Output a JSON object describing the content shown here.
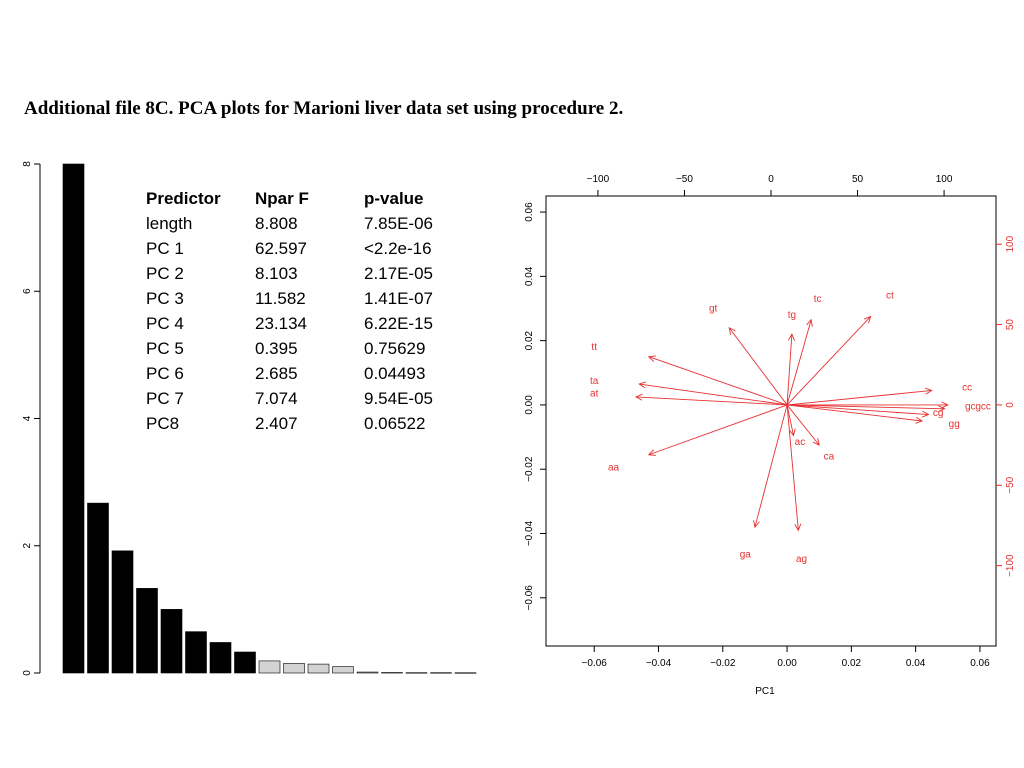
{
  "page": {
    "title": "Additional file 8C. PCA plots for Marioni liver data set using procedure 2."
  },
  "table": {
    "headers": [
      "Predictor",
      "Npar F",
      "p-value"
    ],
    "rows": [
      [
        "length",
        "8.808",
        "7.85E-06"
      ],
      [
        "PC 1",
        "62.597",
        "<2.2e-16"
      ],
      [
        "PC 2",
        "8.103",
        "2.17E-05"
      ],
      [
        "PC 3",
        "11.582",
        "1.41E-07"
      ],
      [
        "PC 4",
        "23.134",
        "6.22E-15"
      ],
      [
        "PC 5",
        "0.395",
        "0.75629"
      ],
      [
        "PC 6",
        "2.685",
        "0.04493"
      ],
      [
        "PC 7",
        "7.074",
        "9.54E-05"
      ],
      [
        "PC8",
        "2.407",
        "0.06522"
      ]
    ]
  },
  "chart_data": [
    {
      "type": "bar",
      "title": "",
      "xlabel": "",
      "ylabel": "",
      "ylim": [
        0,
        8
      ],
      "yticks": [
        "0",
        "2",
        "4",
        "6",
        "8"
      ],
      "values": [
        8.0,
        2.67,
        1.92,
        1.33,
        1.0,
        0.65,
        0.48,
        0.33,
        0.19,
        0.15,
        0.14,
        0.1,
        0.015,
        0.007,
        0.005,
        0.005,
        0.004
      ],
      "colors": {
        "significant": "#000000",
        "non_significant": "#d3d3d3",
        "edge": "#000000"
      },
      "significant_count": 8,
      "light_count": 4
    },
    {
      "type": "scatter",
      "subtype": "biplot",
      "title": "",
      "xlabel": "PC1",
      "ylabel": "",
      "xlim": [
        -0.075,
        0.065
      ],
      "ylim": [
        -0.075,
        0.065
      ],
      "top_xlim": [
        -130,
        130
      ],
      "right_ylim": [
        -150,
        130
      ],
      "bottom_ticks": [
        "-0.06",
        "-0.04",
        "-0.02",
        "0.00",
        "0.02",
        "0.04",
        "0.06"
      ],
      "left_ticks": [
        "-0.06",
        "-0.04",
        "-0.02",
        "0.00",
        "0.02",
        "0.04",
        "0.06"
      ],
      "top_ticks": [
        "-100",
        "-50",
        "0",
        "50",
        "100"
      ],
      "right_ticks": [
        "-100",
        "-50",
        "0",
        "50",
        "100"
      ],
      "arrow_color": "#e83030",
      "vectors": [
        {
          "label": "tt",
          "x": -0.043,
          "y": 0.015,
          "lx": -0.06,
          "ly": 0.018
        },
        {
          "label": "ta",
          "x": -0.046,
          "y": 0.0065,
          "lx": -0.06,
          "ly": 0.0075
        },
        {
          "label": "at",
          "x": -0.047,
          "y": 0.0025,
          "lx": -0.06,
          "ly": 0.0035
        },
        {
          "label": "aa",
          "x": -0.043,
          "y": -0.0155,
          "lx": -0.054,
          "ly": -0.0195
        },
        {
          "label": "gt",
          "x": -0.018,
          "y": 0.024,
          "lx": -0.023,
          "ly": 0.03
        },
        {
          "label": "tg",
          "x": 0.0015,
          "y": 0.022,
          "lx": 0.0015,
          "ly": 0.028
        },
        {
          "label": "tc",
          "x": 0.0075,
          "y": 0.0265,
          "lx": 0.0095,
          "ly": 0.033
        },
        {
          "label": "ct",
          "x": 0.026,
          "y": 0.0275,
          "lx": 0.032,
          "ly": 0.034
        },
        {
          "label": "cc",
          "x": 0.045,
          "y": 0.0045,
          "lx": 0.056,
          "ly": 0.0055
        },
        {
          "label": "gc",
          "x": 0.049,
          "y": -0.0012,
          "lx": 0.057,
          "ly": -0.0005
        },
        {
          "label": "cg",
          "x": 0.044,
          "y": -0.003,
          "lx": 0.047,
          "ly": -0.0025
        },
        {
          "label": "gg",
          "x": 0.042,
          "y": -0.005,
          "lx": 0.052,
          "ly": -0.006
        },
        {
          "label": "ac",
          "x": 0.002,
          "y": -0.0095,
          "lx": 0.004,
          "ly": -0.0115
        },
        {
          "label": "ca",
          "x": 0.01,
          "y": -0.0125,
          "lx": 0.013,
          "ly": -0.016
        },
        {
          "label": "ga",
          "x": -0.01,
          "y": -0.038,
          "lx": -0.013,
          "ly": -0.0465
        },
        {
          "label": "ag",
          "x": 0.0035,
          "y": -0.039,
          "lx": 0.0045,
          "ly": -0.048
        },
        {
          "label": "gcc",
          "x": 0.05,
          "y": 0.0,
          "lx": 0.061,
          "ly": -0.0005
        }
      ]
    }
  ]
}
